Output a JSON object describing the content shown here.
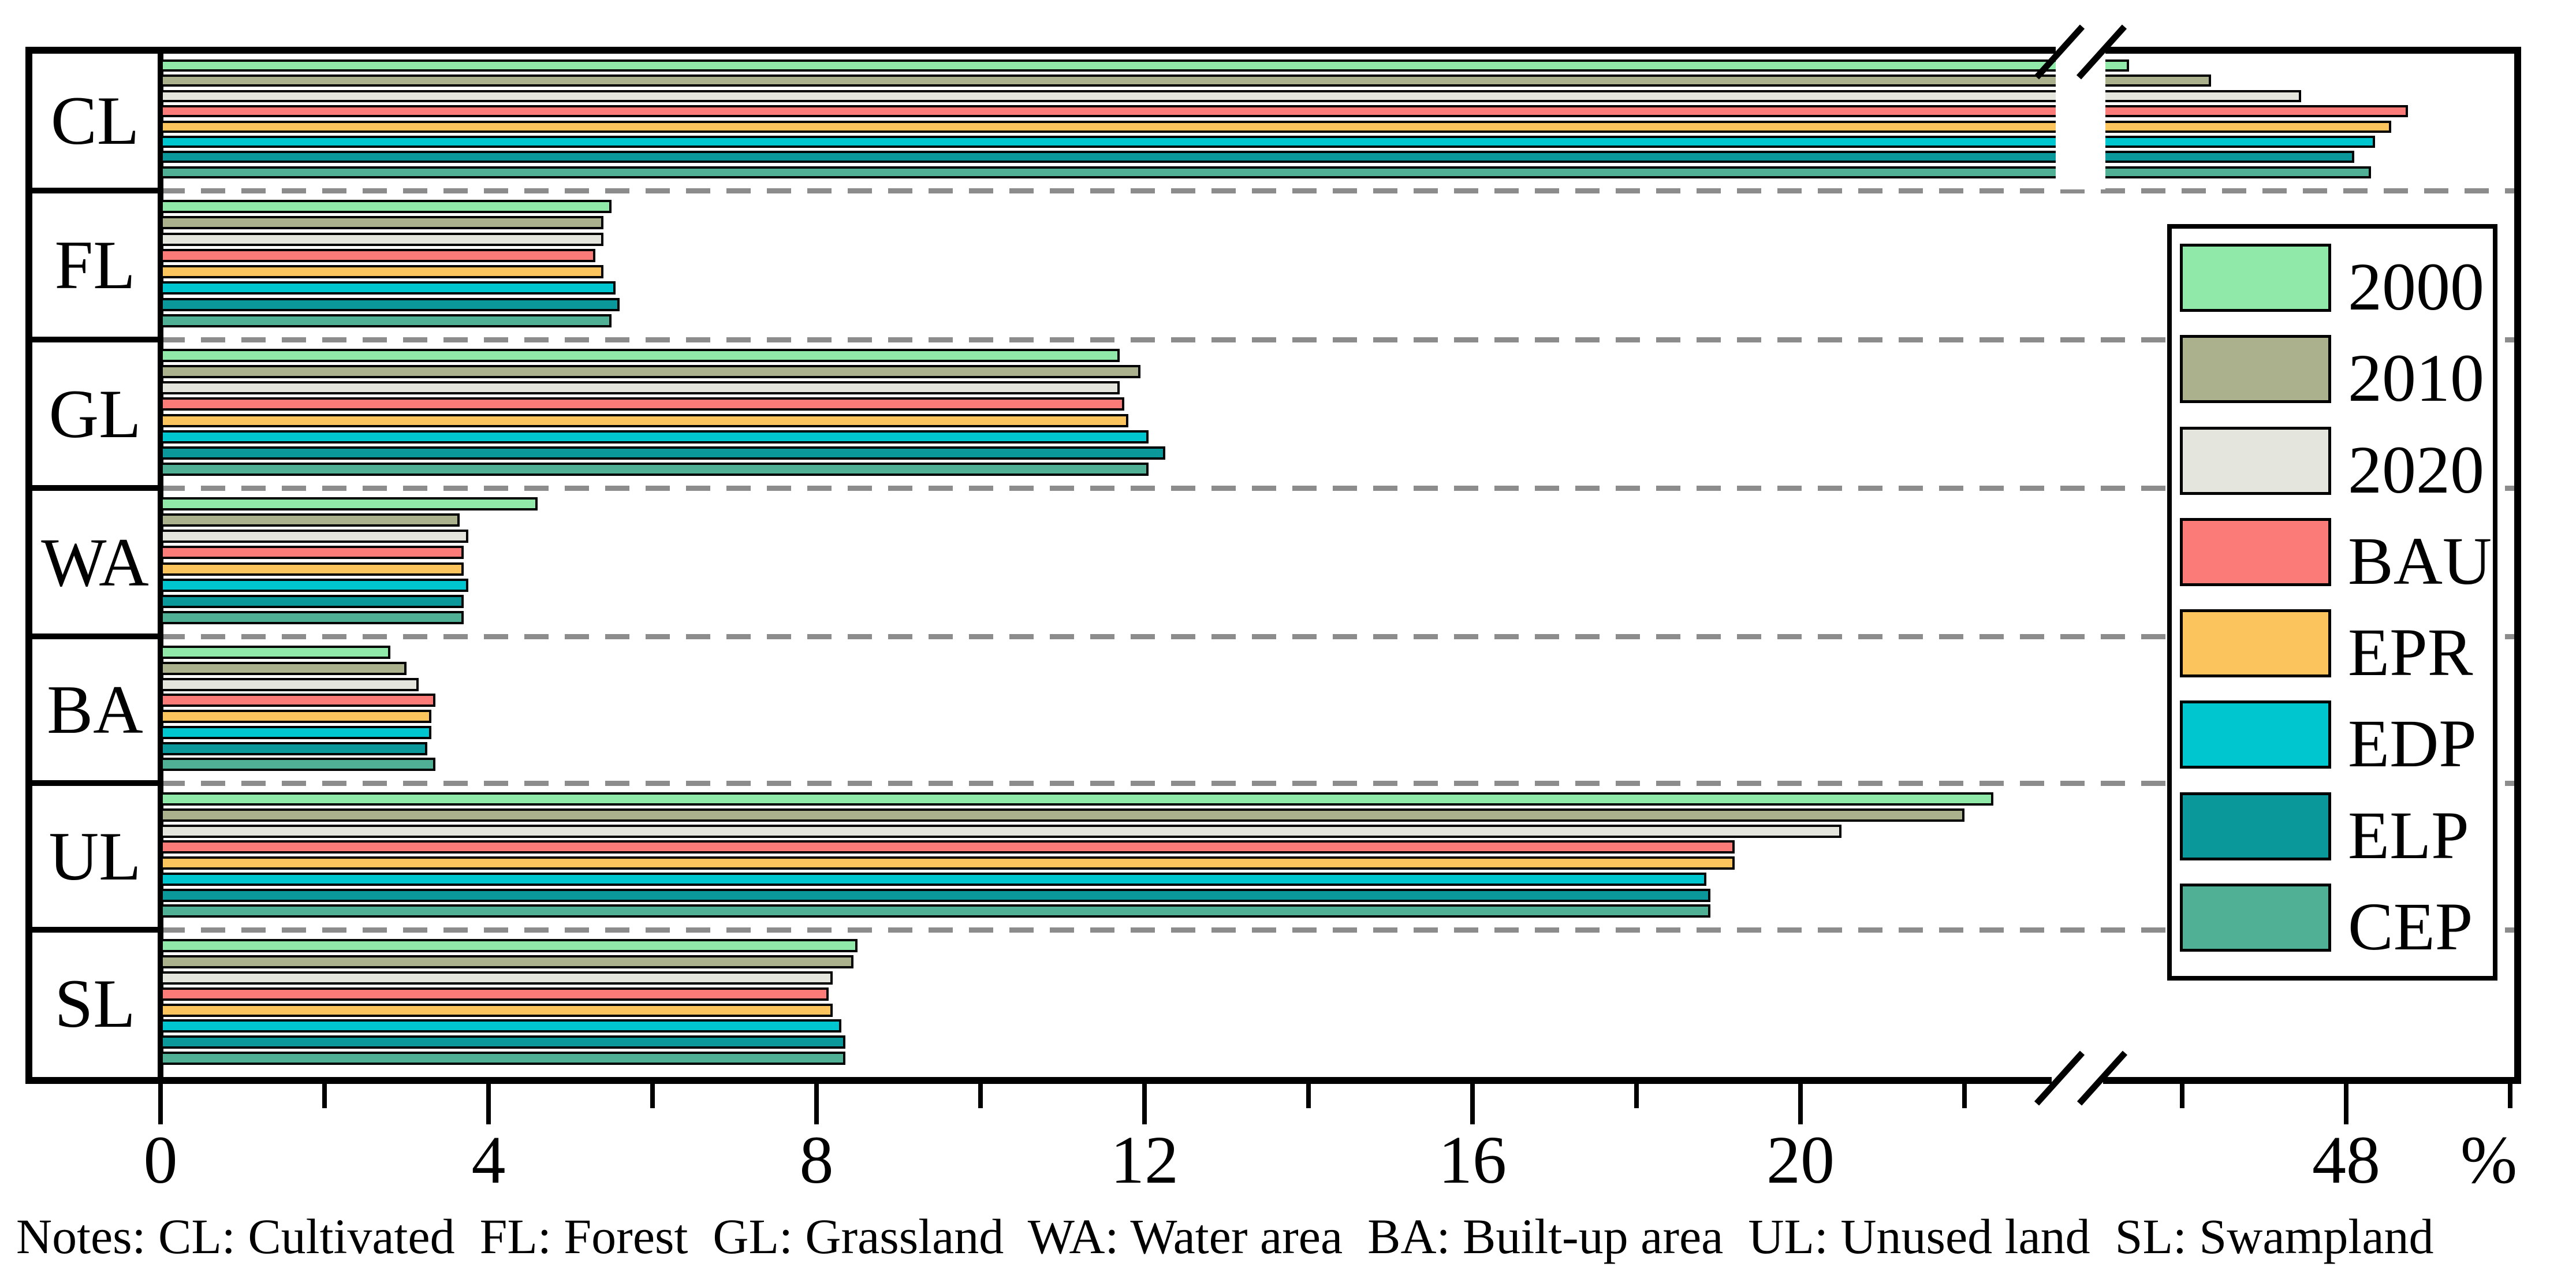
{
  "chart_data": {
    "type": "bar",
    "orientation": "horizontal",
    "title": "",
    "xlabel": "%",
    "categories": [
      "CL",
      "FL",
      "GL",
      "WA",
      "BA",
      "UL",
      "SL"
    ],
    "series": [
      {
        "name": "2000",
        "color": "#90E9A8",
        "values": [
          45.35,
          5.5,
          11.7,
          4.6,
          2.8,
          22.35,
          8.5
        ]
      },
      {
        "name": "2010",
        "color": "#ABB18C",
        "values": [
          46.35,
          5.4,
          11.95,
          3.65,
          3.0,
          22.0,
          8.45
        ]
      },
      {
        "name": "2020",
        "color": "#E4E5DC",
        "values": [
          47.45,
          5.4,
          11.7,
          3.75,
          3.15,
          20.5,
          8.2
        ]
      },
      {
        "name": "BAU",
        "color": "#FA7B78",
        "values": [
          48.75,
          5.3,
          11.75,
          3.7,
          3.35,
          19.2,
          8.15
        ]
      },
      {
        "name": "EPR",
        "color": "#FCC45C",
        "values": [
          48.55,
          5.4,
          11.8,
          3.7,
          3.3,
          19.2,
          8.2
        ]
      },
      {
        "name": "EDP",
        "color": "#00C6D0",
        "values": [
          48.35,
          5.55,
          12.05,
          3.75,
          3.3,
          18.85,
          8.3
        ]
      },
      {
        "name": "ELP",
        "color": "#0B989B",
        "values": [
          48.1,
          5.6,
          12.25,
          3.7,
          3.25,
          18.9,
          8.35
        ]
      },
      {
        "name": "CEP",
        "color": "#4FB095",
        "values": [
          48.3,
          5.5,
          12.05,
          3.7,
          3.35,
          18.9,
          8.35
        ]
      }
    ],
    "x_major_ticks": [
      0,
      4,
      8,
      12,
      16,
      20,
      48
    ],
    "x_minor_ticks": [
      2,
      6,
      10,
      14,
      18,
      22,
      46,
      50
    ],
    "axis_break": {
      "from": 23,
      "to": 45
    },
    "xlim": [
      0,
      50
    ],
    "grid": "dashed horizontal category separators",
    "legend_position": "right"
  },
  "unit_label": "%",
  "notes": "Notes: CL: Cultivated  FL: Forest  GL: Grassland  WA: Water area  BA: Built-up area  UL: Unused land  SL: Swampland"
}
